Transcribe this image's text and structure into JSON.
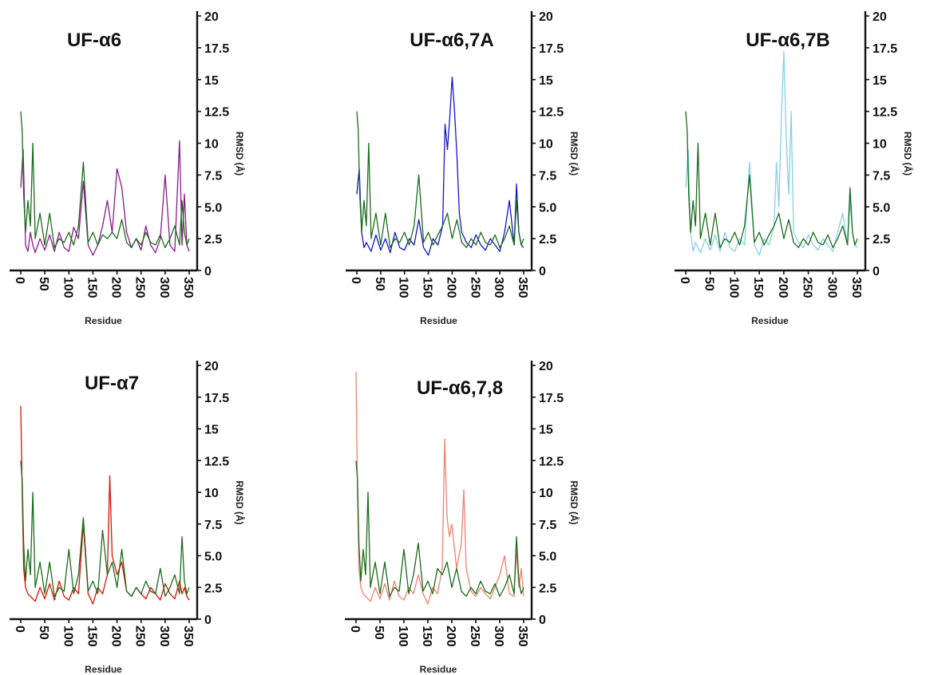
{
  "chart_data": [
    {
      "type": "line",
      "title": "UF-α6",
      "xlabel": "Residue",
      "ylabel": "RMSD (Å)",
      "xlim": [
        0,
        350
      ],
      "ylim": [
        0,
        20
      ],
      "xticks": [
        "0",
        "50",
        "100",
        "150",
        "200",
        "250",
        "300",
        "350"
      ],
      "yticks": [
        "0",
        "2.5",
        "5.0",
        "7.5",
        "10",
        "12.5",
        "15",
        "17.5",
        "20"
      ],
      "series": [
        {
          "color": "#8B1A8B",
          "x": [
            0,
            5,
            10,
            15,
            20,
            25,
            30,
            40,
            50,
            60,
            70,
            80,
            90,
            100,
            110,
            120,
            130,
            140,
            150,
            160,
            170,
            180,
            190,
            200,
            210,
            220,
            230,
            240,
            250,
            260,
            270,
            280,
            290,
            300,
            310,
            320,
            330,
            335,
            340,
            345,
            350
          ],
          "y": [
            6.5,
            9.5,
            2.0,
            1.5,
            3.0,
            2.0,
            1.4,
            2.5,
            1.6,
            2.8,
            1.5,
            3.0,
            1.8,
            1.5,
            3.4,
            2.5,
            7.0,
            2.0,
            1.2,
            2.0,
            3.5,
            5.5,
            3.0,
            8.0,
            6.5,
            3.0,
            1.8,
            2.5,
            1.6,
            3.5,
            2.0,
            1.4,
            2.5,
            7.5,
            2.0,
            1.5,
            10.2,
            2.0,
            6.0,
            2.0,
            1.5
          ]
        },
        {
          "color": "#1B6B1B",
          "x": [
            0,
            3,
            6,
            10,
            15,
            20,
            25,
            30,
            40,
            50,
            60,
            70,
            80,
            90,
            100,
            110,
            120,
            130,
            140,
            150,
            160,
            170,
            180,
            190,
            200,
            210,
            220,
            230,
            240,
            250,
            260,
            270,
            280,
            290,
            300,
            310,
            320,
            330,
            335,
            340,
            345,
            350
          ],
          "y": [
            12.5,
            11.0,
            6.0,
            3.0,
            5.5,
            3.5,
            10.0,
            2.5,
            4.5,
            2.0,
            4.5,
            1.8,
            2.5,
            2.2,
            3.0,
            2.0,
            3.5,
            8.5,
            2.2,
            3.0,
            2.0,
            2.8,
            2.5,
            3.0,
            2.5,
            4.0,
            2.2,
            1.8,
            2.5,
            2.0,
            3.0,
            2.2,
            2.0,
            2.8,
            1.8,
            2.5,
            3.5,
            2.0,
            5.5,
            3.0,
            2.0,
            2.5
          ]
        }
      ]
    },
    {
      "type": "line",
      "title": "UF-α6,7A",
      "xlabel": "Residue",
      "ylabel": "RMSD (Å)",
      "xlim": [
        0,
        350
      ],
      "ylim": [
        0,
        20
      ],
      "xticks": [
        "0",
        "50",
        "100",
        "150",
        "200",
        "250",
        "300",
        "350"
      ],
      "yticks": [
        "0",
        "2.5",
        "5.0",
        "7.5",
        "10",
        "12.5",
        "15",
        "17.5",
        "20"
      ],
      "series": [
        {
          "color": "#1515CC",
          "x": [
            0,
            5,
            10,
            15,
            20,
            30,
            40,
            50,
            60,
            70,
            80,
            90,
            100,
            110,
            120,
            130,
            140,
            150,
            160,
            170,
            180,
            185,
            190,
            195,
            200,
            205,
            210,
            215,
            220,
            230,
            240,
            250,
            260,
            270,
            280,
            290,
            300,
            310,
            320,
            330,
            335,
            340,
            345,
            350
          ],
          "y": [
            6.0,
            8.0,
            3.0,
            1.8,
            2.2,
            1.5,
            2.8,
            1.6,
            2.5,
            1.4,
            3.0,
            1.8,
            1.6,
            2.5,
            2.0,
            4.0,
            1.8,
            1.2,
            2.5,
            2.0,
            3.5,
            11.5,
            9.5,
            12.0,
            15.2,
            12.5,
            9.0,
            4.5,
            3.0,
            2.2,
            1.8,
            2.8,
            2.0,
            1.6,
            2.5,
            2.0,
            1.5,
            3.0,
            5.5,
            2.0,
            6.8,
            3.0,
            2.0,
            1.8
          ]
        },
        {
          "color": "#1B6B1B",
          "x": [
            0,
            3,
            6,
            10,
            15,
            20,
            25,
            30,
            40,
            50,
            60,
            70,
            80,
            90,
            100,
            110,
            120,
            130,
            140,
            150,
            160,
            170,
            180,
            190,
            200,
            210,
            220,
            230,
            240,
            250,
            260,
            270,
            280,
            290,
            300,
            310,
            320,
            330,
            335,
            340,
            345,
            350
          ],
          "y": [
            12.5,
            11.0,
            6.0,
            3.0,
            5.5,
            3.5,
            10.0,
            2.5,
            4.5,
            2.0,
            4.5,
            1.8,
            2.5,
            2.2,
            3.0,
            2.0,
            3.5,
            7.5,
            2.2,
            3.0,
            2.0,
            2.8,
            3.5,
            4.5,
            2.5,
            4.0,
            2.2,
            1.8,
            2.5,
            2.0,
            3.0,
            2.2,
            2.0,
            2.8,
            1.8,
            2.5,
            3.5,
            2.0,
            5.5,
            3.0,
            2.0,
            2.5
          ]
        }
      ]
    },
    {
      "type": "line",
      "title": "UF-α6,7B",
      "xlabel": "Residue",
      "ylabel": "RMSD (Å)",
      "xlim": [
        0,
        350
      ],
      "ylim": [
        0,
        20
      ],
      "xticks": [
        "0",
        "50",
        "100",
        "150",
        "200",
        "250",
        "300",
        "350"
      ],
      "yticks": [
        "0",
        "2.5",
        "5.0",
        "7.5",
        "10",
        "12.5",
        "15",
        "17.5",
        "20"
      ],
      "series": [
        {
          "color": "#87CEEB",
          "x": [
            0,
            5,
            10,
            15,
            20,
            30,
            40,
            50,
            60,
            70,
            80,
            90,
            100,
            110,
            120,
            130,
            140,
            150,
            160,
            170,
            180,
            185,
            190,
            195,
            200,
            205,
            210,
            215,
            220,
            230,
            240,
            250,
            260,
            270,
            280,
            290,
            300,
            310,
            320,
            330,
            335,
            340,
            345,
            350
          ],
          "y": [
            6.5,
            9.5,
            3.0,
            1.5,
            2.2,
            1.4,
            2.5,
            1.6,
            2.8,
            1.5,
            3.0,
            1.8,
            1.5,
            2.5,
            2.0,
            8.5,
            2.0,
            1.2,
            2.5,
            2.0,
            3.5,
            8.5,
            5.0,
            12.0,
            17.2,
            10.5,
            6.0,
            12.5,
            3.0,
            2.2,
            1.8,
            2.8,
            2.0,
            1.6,
            2.5,
            2.0,
            1.5,
            3.0,
            4.5,
            2.0,
            5.5,
            3.0,
            2.0,
            1.8
          ]
        },
        {
          "color": "#1B6B1B",
          "x": [
            0,
            3,
            6,
            10,
            15,
            20,
            25,
            30,
            40,
            50,
            60,
            70,
            80,
            90,
            100,
            110,
            120,
            130,
            140,
            150,
            160,
            170,
            180,
            190,
            200,
            210,
            220,
            230,
            240,
            250,
            260,
            270,
            280,
            290,
            300,
            310,
            320,
            330,
            335,
            340,
            345,
            350
          ],
          "y": [
            12.5,
            11.0,
            6.0,
            3.0,
            5.5,
            3.5,
            10.0,
            2.5,
            4.5,
            2.0,
            4.5,
            1.8,
            2.5,
            2.2,
            3.0,
            2.0,
            3.5,
            7.5,
            2.2,
            3.0,
            2.0,
            2.8,
            3.5,
            4.5,
            2.5,
            4.0,
            2.2,
            1.8,
            2.5,
            2.0,
            3.0,
            2.2,
            2.0,
            2.8,
            1.8,
            2.5,
            3.5,
            2.0,
            6.5,
            3.0,
            2.0,
            2.5
          ]
        }
      ]
    },
    {
      "type": "line",
      "title": "UF-α7",
      "xlabel": "Residue",
      "ylabel": "RMSD (Å)",
      "xlim": [
        0,
        350
      ],
      "ylim": [
        0,
        20
      ],
      "xticks": [
        "0",
        "50",
        "100",
        "150",
        "200",
        "250",
        "300",
        "350"
      ],
      "yticks": [
        "0",
        "2.5",
        "5.0",
        "7.5",
        "10",
        "12.5",
        "15",
        "17.5",
        "20"
      ],
      "series": [
        {
          "color": "#DD1100",
          "x": [
            0,
            3,
            6,
            10,
            15,
            20,
            30,
            40,
            50,
            60,
            70,
            80,
            90,
            100,
            110,
            120,
            130,
            140,
            150,
            160,
            170,
            180,
            185,
            190,
            200,
            210,
            220,
            230,
            240,
            250,
            260,
            270,
            280,
            290,
            300,
            310,
            320,
            330,
            335,
            340,
            345,
            350
          ],
          "y": [
            16.8,
            10.0,
            4.0,
            2.5,
            2.0,
            1.8,
            1.4,
            2.5,
            1.6,
            2.8,
            1.5,
            3.0,
            1.8,
            1.5,
            2.5,
            2.0,
            7.5,
            2.0,
            1.2,
            2.5,
            2.0,
            3.5,
            11.3,
            5.0,
            3.5,
            4.5,
            2.2,
            1.8,
            2.5,
            2.0,
            1.6,
            2.5,
            2.0,
            1.5,
            2.8,
            2.0,
            1.6,
            3.0,
            2.0,
            2.5,
            1.8,
            1.5
          ]
        },
        {
          "color": "#1B6B1B",
          "x": [
            0,
            3,
            6,
            10,
            15,
            20,
            25,
            30,
            40,
            50,
            60,
            70,
            80,
            90,
            100,
            110,
            120,
            130,
            140,
            150,
            160,
            170,
            180,
            190,
            200,
            210,
            220,
            230,
            240,
            250,
            260,
            270,
            280,
            290,
            300,
            310,
            320,
            330,
            335,
            340,
            345,
            350
          ],
          "y": [
            12.5,
            11.0,
            6.0,
            3.0,
            5.5,
            3.5,
            10.0,
            2.5,
            4.5,
            2.0,
            4.5,
            1.8,
            2.5,
            2.2,
            5.5,
            2.0,
            3.5,
            8.0,
            2.2,
            3.0,
            2.0,
            7.0,
            3.5,
            4.5,
            2.5,
            5.5,
            2.2,
            1.8,
            2.5,
            2.0,
            3.0,
            2.2,
            2.0,
            4.0,
            1.8,
            2.5,
            3.5,
            2.0,
            6.5,
            3.0,
            2.0,
            2.5
          ]
        }
      ]
    },
    {
      "type": "line",
      "title": "UF-α6,7,8",
      "xlabel": "Residue",
      "ylabel": "RMSD (Å)",
      "xlim": [
        0,
        350
      ],
      "ylim": [
        0,
        20
      ],
      "xticks": [
        "0",
        "50",
        "100",
        "150",
        "200",
        "250",
        "300",
        "350"
      ],
      "yticks": [
        "0",
        "2.5",
        "5.0",
        "7.5",
        "10",
        "12.5",
        "15",
        "17.5",
        "20"
      ],
      "series": [
        {
          "color": "#F08070",
          "x": [
            0,
            3,
            6,
            10,
            15,
            20,
            30,
            40,
            50,
            60,
            70,
            80,
            90,
            100,
            110,
            120,
            130,
            140,
            150,
            160,
            170,
            180,
            185,
            190,
            195,
            200,
            210,
            220,
            225,
            230,
            240,
            250,
            260,
            270,
            280,
            290,
            300,
            310,
            320,
            330,
            335,
            340,
            345,
            350
          ],
          "y": [
            19.5,
            10.0,
            4.0,
            2.5,
            2.0,
            1.8,
            1.4,
            2.5,
            1.6,
            2.8,
            1.5,
            3.0,
            1.8,
            1.5,
            2.5,
            2.0,
            3.5,
            2.0,
            1.2,
            2.5,
            2.0,
            4.0,
            14.2,
            8.0,
            6.5,
            7.5,
            4.0,
            6.0,
            10.2,
            4.0,
            2.2,
            1.8,
            2.5,
            2.0,
            1.6,
            2.5,
            3.5,
            5.0,
            2.0,
            1.8,
            5.5,
            2.5,
            4.0,
            1.8
          ]
        },
        {
          "color": "#1B6B1B",
          "x": [
            0,
            3,
            6,
            10,
            15,
            20,
            25,
            30,
            40,
            50,
            60,
            70,
            80,
            90,
            100,
            110,
            120,
            130,
            140,
            150,
            160,
            170,
            180,
            190,
            200,
            210,
            220,
            230,
            240,
            250,
            260,
            270,
            280,
            290,
            300,
            310,
            320,
            330,
            335,
            340,
            345,
            350
          ],
          "y": [
            12.5,
            11.0,
            6.0,
            3.0,
            5.5,
            3.5,
            10.0,
            2.5,
            4.5,
            2.0,
            4.5,
            1.8,
            2.5,
            2.2,
            5.5,
            2.0,
            3.5,
            6.0,
            2.2,
            3.0,
            2.0,
            4.0,
            3.5,
            4.5,
            2.5,
            4.0,
            2.2,
            1.8,
            2.5,
            2.0,
            3.0,
            2.2,
            2.0,
            2.8,
            1.8,
            2.5,
            3.5,
            2.0,
            6.5,
            3.0,
            2.0,
            2.5
          ]
        }
      ]
    }
  ]
}
